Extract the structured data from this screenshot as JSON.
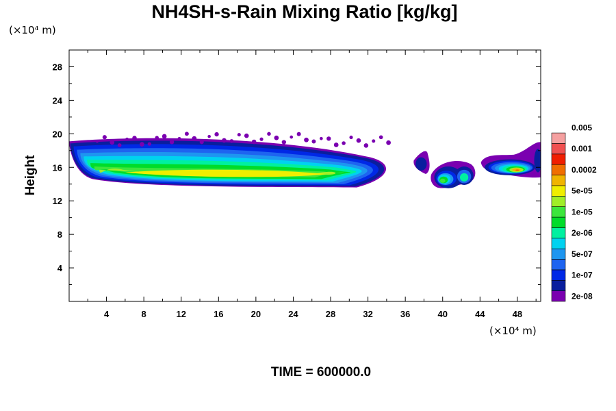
{
  "chart_data": {
    "type": "heatmap",
    "title": "NH4SH-s-Rain Mixing Ratio [kg/kg]",
    "xlabel": "",
    "ylabel": "Height",
    "x_unit_label": "(×10⁴ m)",
    "y_unit_label": "(×10⁴ m)",
    "xlim": [
      0,
      50.5
    ],
    "ylim": [
      0,
      30
    ],
    "x_ticks": [
      4,
      8,
      12,
      16,
      20,
      24,
      28,
      32,
      36,
      40,
      44,
      48
    ],
    "y_ticks": [
      4,
      8,
      12,
      16,
      20,
      24,
      28
    ],
    "footer": "TIME = 600000.0",
    "colorbar": {
      "colors": [
        "#7a00b0",
        "#0a1e9e",
        "#0028e6",
        "#1e64f0",
        "#1e96f0",
        "#00d2f0",
        "#00f0a0",
        "#00dc2a",
        "#3ce63c",
        "#a0ee28",
        "#f0ee00",
        "#f0b400",
        "#f06e00",
        "#f01e00",
        "#f05050",
        "#f5a0a0"
      ],
      "labels": [
        "2e-08",
        "1e-07",
        "5e-07",
        "2e-06",
        "1e-05",
        "5e-05",
        "0.0002",
        "0.001",
        "0.005"
      ],
      "label_steps": [
        1,
        3,
        5,
        7,
        9,
        11,
        13,
        15,
        17
      ]
    },
    "field_regions": [
      {
        "name": "main cloud",
        "x_range": [
          0,
          35.2
        ],
        "y_range": [
          13.6,
          19.8
        ],
        "peak_level": 10
      },
      {
        "name": "cell A",
        "x_range": [
          36.8,
          38.5
        ],
        "y_range": [
          15.0,
          18.2
        ],
        "peak_level": 2
      },
      {
        "name": "cell B",
        "x_range": [
          38.7,
          43.7
        ],
        "y_range": [
          13.4,
          17.3
        ],
        "peak_level": 8
      },
      {
        "name": "cell C",
        "x_range": [
          44.0,
          50.5
        ],
        "y_range": [
          14.7,
          19.2
        ],
        "peak_level": 10
      }
    ]
  }
}
